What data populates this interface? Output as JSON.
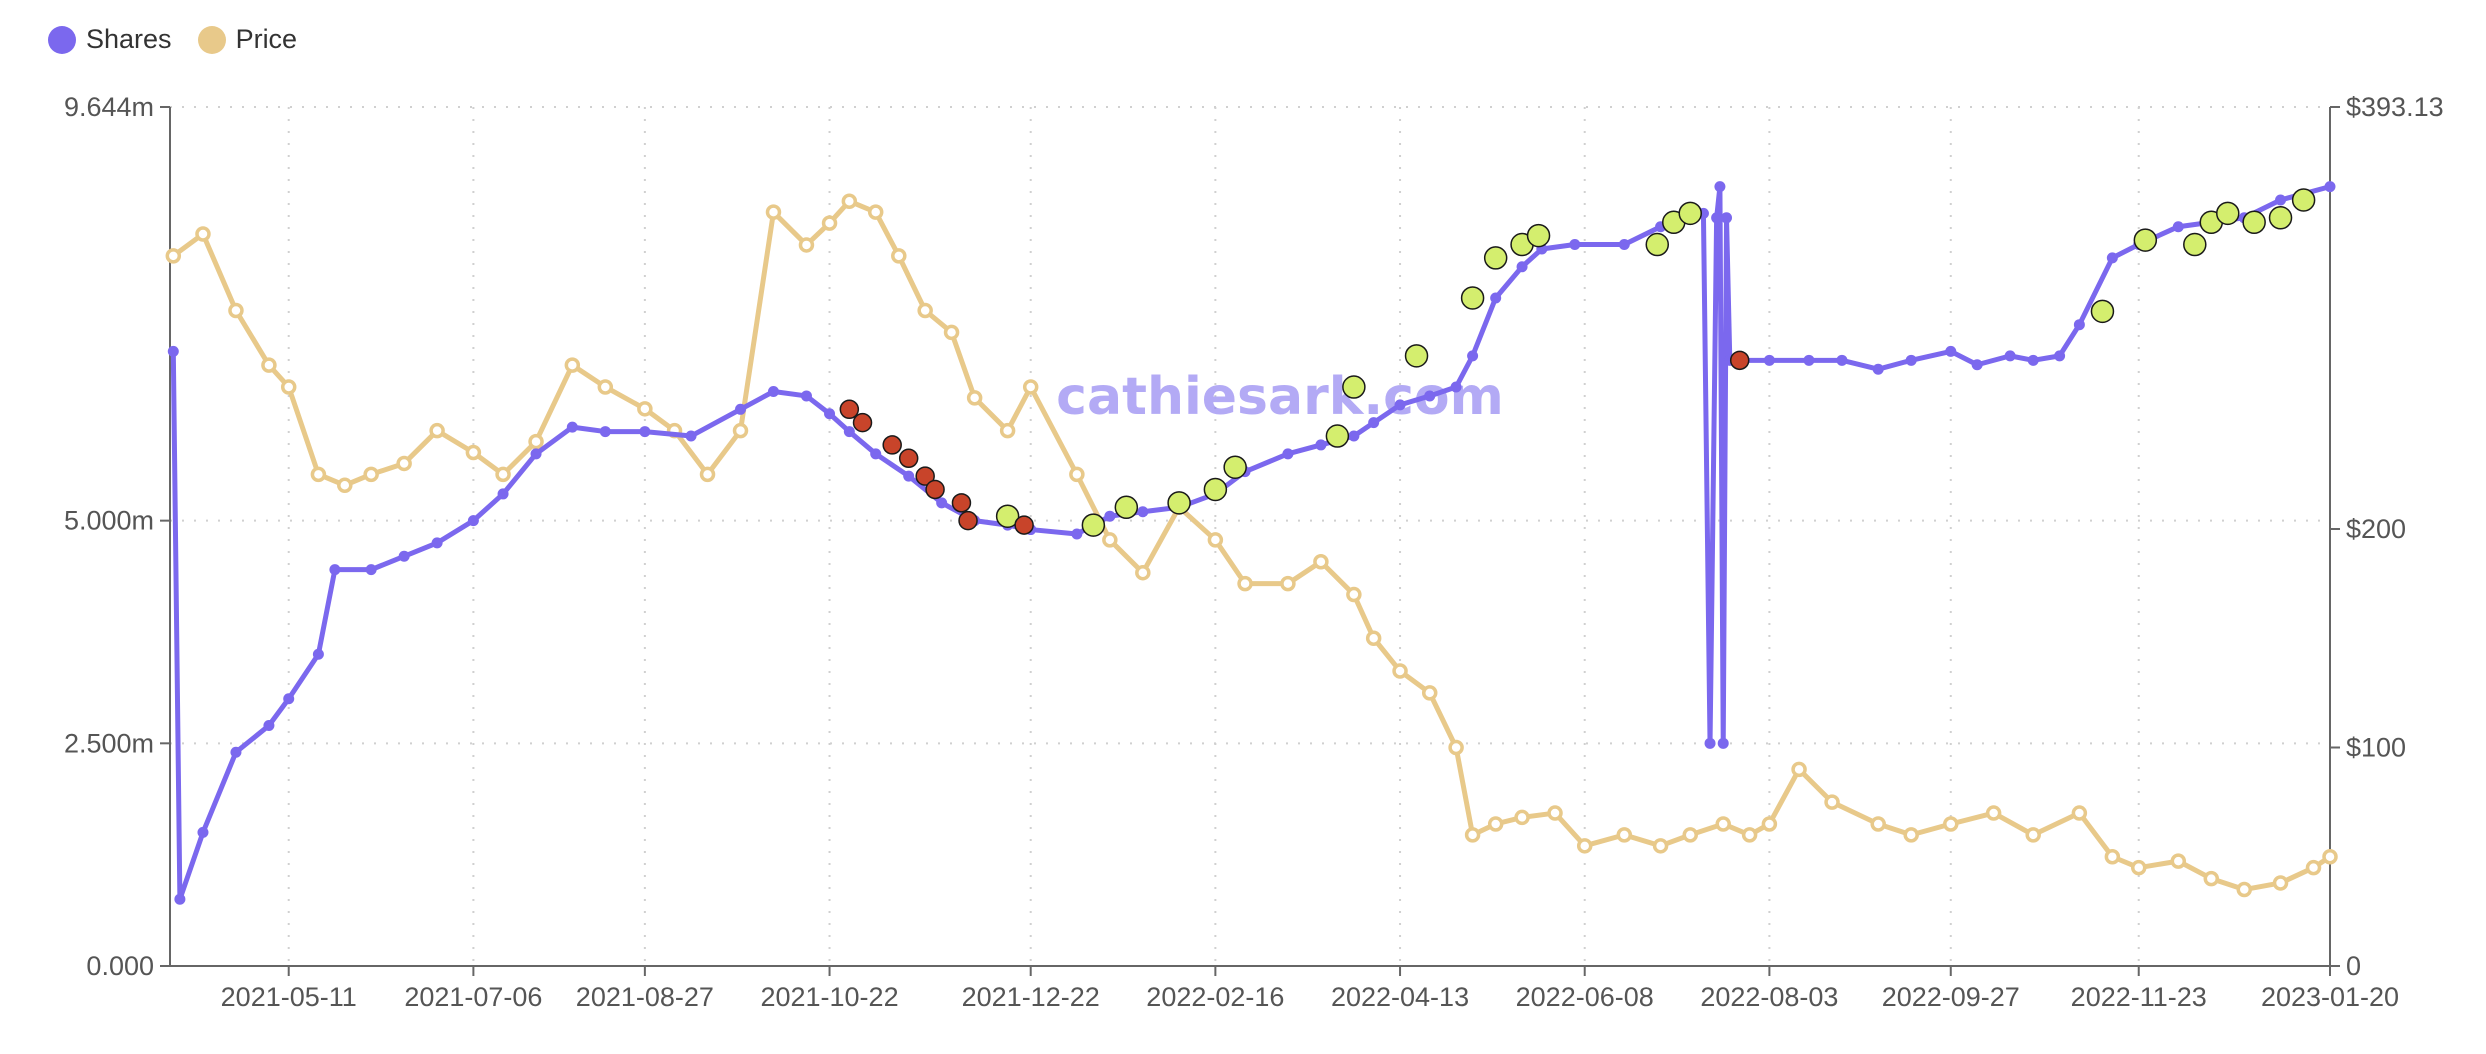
{
  "chart_data": {
    "type": "line",
    "title": "",
    "watermark": "cathiesark.com",
    "legend": {
      "position": "top-left",
      "items": [
        "Shares",
        "Price"
      ]
    },
    "x_ticks": [
      "2021-05-11",
      "2021-07-06",
      "2021-08-27",
      "2021-10-22",
      "2021-12-22",
      "2022-02-16",
      "2022-04-13",
      "2022-06-08",
      "2022-08-03",
      "2022-09-27",
      "2022-11-23",
      "2023-01-20"
    ],
    "y_left_ticks": [
      "9.644m",
      "5.000m",
      "2.500m",
      "0.000"
    ],
    "y_right_ticks": [
      "$393.13",
      "$200",
      "$100",
      "0"
    ],
    "y_left_range": [
      0,
      9.644
    ],
    "y_right_range": [
      0,
      393.13
    ],
    "grid": true,
    "colors": {
      "shares": "#7b68ee",
      "price": "#e8c98a",
      "buy": "#d4ee6e",
      "sell": "#c8442a"
    },
    "series": [
      {
        "name": "Shares",
        "axis": "left",
        "unit": "m",
        "x": [
          "2021-04-06",
          "2021-04-08",
          "2021-04-15",
          "2021-04-25",
          "2021-05-05",
          "2021-05-11",
          "2021-05-20",
          "2021-05-25",
          "2021-06-05",
          "2021-06-15",
          "2021-06-25",
          "2021-07-06",
          "2021-07-15",
          "2021-07-25",
          "2021-08-05",
          "2021-08-15",
          "2021-08-27",
          "2021-09-10",
          "2021-09-25",
          "2021-10-05",
          "2021-10-15",
          "2021-10-22",
          "2021-10-28",
          "2021-11-05",
          "2021-11-15",
          "2021-11-25",
          "2021-12-05",
          "2021-12-15",
          "2021-12-22",
          "2022-01-05",
          "2022-01-15",
          "2022-01-25",
          "2022-02-05",
          "2022-02-16",
          "2022-02-25",
          "2022-03-10",
          "2022-03-20",
          "2022-03-30",
          "2022-04-05",
          "2022-04-13",
          "2022-04-22",
          "2022-04-30",
          "2022-05-05",
          "2022-05-12",
          "2022-05-20",
          "2022-05-26",
          "2022-06-05",
          "2022-06-20",
          "2022-07-01",
          "2022-07-08",
          "2022-07-14",
          "2022-07-16",
          "2022-07-18",
          "2022-07-19",
          "2022-07-20",
          "2022-07-21",
          "2022-07-22",
          "2022-07-23",
          "2022-08-03",
          "2022-08-15",
          "2022-08-25",
          "2022-09-05",
          "2022-09-15",
          "2022-09-27",
          "2022-10-05",
          "2022-10-15",
          "2022-10-22",
          "2022-10-30",
          "2022-11-05",
          "2022-11-15",
          "2022-11-23",
          "2022-12-05",
          "2022-12-15",
          "2022-12-25",
          "2023-01-05",
          "2023-01-20"
        ],
        "values": [
          6.9,
          0.75,
          1.5,
          2.4,
          2.7,
          3.0,
          3.5,
          4.45,
          4.45,
          4.6,
          4.75,
          5.0,
          5.3,
          5.75,
          6.05,
          6.0,
          6.0,
          5.95,
          6.25,
          6.45,
          6.4,
          6.2,
          6.0,
          5.75,
          5.5,
          5.2,
          5.0,
          4.95,
          4.9,
          4.85,
          5.05,
          5.1,
          5.15,
          5.3,
          5.55,
          5.75,
          5.85,
          5.95,
          6.1,
          6.3,
          6.4,
          6.5,
          6.85,
          7.5,
          7.85,
          8.05,
          8.1,
          8.1,
          8.3,
          8.4,
          8.45,
          2.5,
          8.4,
          8.75,
          2.5,
          8.4,
          6.8,
          6.8,
          6.8,
          6.8,
          6.8,
          6.7,
          6.8,
          6.9,
          6.75,
          6.85,
          6.8,
          6.85,
          7.2,
          7.95,
          8.1,
          8.3,
          8.35,
          8.4,
          8.6,
          8.75
        ]
      },
      {
        "name": "Price",
        "axis": "right",
        "unit": "$",
        "x": [
          "2021-04-06",
          "2021-04-15",
          "2021-04-25",
          "2021-05-05",
          "2021-05-11",
          "2021-05-20",
          "2021-05-28",
          "2021-06-05",
          "2021-06-15",
          "2021-06-25",
          "2021-07-06",
          "2021-07-15",
          "2021-07-25",
          "2021-08-05",
          "2021-08-15",
          "2021-08-27",
          "2021-09-05",
          "2021-09-15",
          "2021-09-25",
          "2021-10-05",
          "2021-10-15",
          "2021-10-22",
          "2021-10-28",
          "2021-11-05",
          "2021-11-12",
          "2021-11-20",
          "2021-11-28",
          "2021-12-05",
          "2021-12-15",
          "2021-12-22",
          "2022-01-05",
          "2022-01-15",
          "2022-01-25",
          "2022-02-05",
          "2022-02-16",
          "2022-02-25",
          "2022-03-10",
          "2022-03-20",
          "2022-03-30",
          "2022-04-05",
          "2022-04-13",
          "2022-04-22",
          "2022-04-30",
          "2022-05-05",
          "2022-05-12",
          "2022-05-20",
          "2022-05-30",
          "2022-06-08",
          "2022-06-20",
          "2022-07-01",
          "2022-07-10",
          "2022-07-20",
          "2022-07-28",
          "2022-08-03",
          "2022-08-12",
          "2022-08-22",
          "2022-09-05",
          "2022-09-15",
          "2022-09-27",
          "2022-10-10",
          "2022-10-22",
          "2022-11-05",
          "2022-11-15",
          "2022-11-23",
          "2022-12-05",
          "2022-12-15",
          "2022-12-25",
          "2023-01-05",
          "2023-01-15",
          "2023-01-20"
        ],
        "values": [
          325,
          335,
          300,
          275,
          265,
          225,
          220,
          225,
          230,
          245,
          235,
          225,
          240,
          275,
          265,
          255,
          245,
          225,
          245,
          345,
          330,
          340,
          350,
          345,
          325,
          300,
          290,
          260,
          245,
          265,
          225,
          195,
          180,
          210,
          195,
          175,
          175,
          185,
          170,
          150,
          135,
          125,
          100,
          60,
          65,
          68,
          70,
          55,
          60,
          55,
          60,
          65,
          60,
          65,
          90,
          75,
          65,
          60,
          65,
          70,
          60,
          70,
          50,
          45,
          48,
          40,
          35,
          38,
          45,
          50
        ]
      }
    ],
    "buy_markers": [
      {
        "date": "2021-12-15",
        "shares": 5.05
      },
      {
        "date": "2022-01-10",
        "shares": 4.95
      },
      {
        "date": "2022-01-20",
        "shares": 5.15
      },
      {
        "date": "2022-02-05",
        "shares": 5.2
      },
      {
        "date": "2022-02-16",
        "shares": 5.35
      },
      {
        "date": "2022-02-22",
        "shares": 5.6
      },
      {
        "date": "2022-03-25",
        "shares": 5.95
      },
      {
        "date": "2022-03-30",
        "shares": 6.5
      },
      {
        "date": "2022-04-18",
        "shares": 6.85
      },
      {
        "date": "2022-05-05",
        "shares": 7.5
      },
      {
        "date": "2022-05-12",
        "shares": 7.95
      },
      {
        "date": "2022-05-20",
        "shares": 8.1
      },
      {
        "date": "2022-05-25",
        "shares": 8.2
      },
      {
        "date": "2022-06-30",
        "shares": 8.1
      },
      {
        "date": "2022-07-05",
        "shares": 8.35
      },
      {
        "date": "2022-07-10",
        "shares": 8.45
      },
      {
        "date": "2022-11-12",
        "shares": 7.35
      },
      {
        "date": "2022-11-25",
        "shares": 8.15
      },
      {
        "date": "2022-12-10",
        "shares": 8.1
      },
      {
        "date": "2022-12-15",
        "shares": 8.35
      },
      {
        "date": "2022-12-20",
        "shares": 8.45
      },
      {
        "date": "2022-12-28",
        "shares": 8.35
      },
      {
        "date": "2023-01-05",
        "shares": 8.4
      },
      {
        "date": "2023-01-12",
        "shares": 8.6
      }
    ],
    "sell_markers": [
      {
        "date": "2021-10-28",
        "shares": 6.25
      },
      {
        "date": "2021-11-01",
        "shares": 6.1
      },
      {
        "date": "2021-11-10",
        "shares": 5.85
      },
      {
        "date": "2021-11-15",
        "shares": 5.7
      },
      {
        "date": "2021-11-20",
        "shares": 5.5
      },
      {
        "date": "2021-11-23",
        "shares": 5.35
      },
      {
        "date": "2021-12-01",
        "shares": 5.2
      },
      {
        "date": "2021-12-03",
        "shares": 5.0
      },
      {
        "date": "2021-12-20",
        "shares": 4.95
      },
      {
        "date": "2022-07-25",
        "shares": 6.8
      }
    ]
  }
}
